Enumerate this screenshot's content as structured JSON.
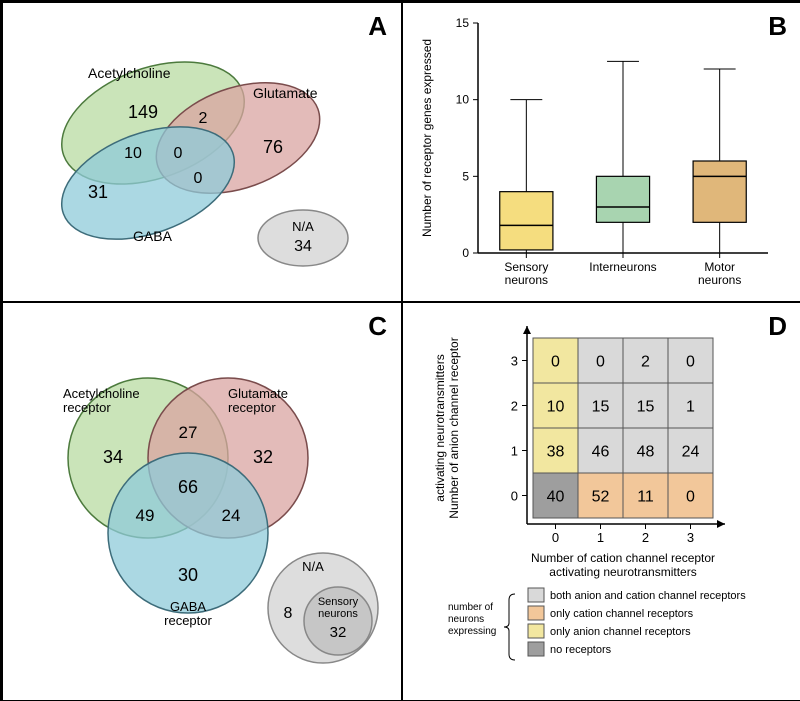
{
  "panelLabels": {
    "A": "A",
    "B": "B",
    "C": "C",
    "D": "D"
  },
  "vennA": {
    "sets": {
      "ach": {
        "label": "Acetylcholine",
        "color": "#b8dba2",
        "stroke": "#4c7a3d"
      },
      "glu": {
        "label": "Glutamate",
        "color": "#d9a4a1",
        "stroke": "#7a4c4c"
      },
      "gaba": {
        "label": "GABA",
        "color": "#8fcbd9",
        "stroke": "#3d6c7a"
      }
    },
    "regions": {
      "ach_only": "149",
      "glu_only": "76",
      "gaba_only": "31",
      "ach_glu": "2",
      "ach_gaba": "10",
      "glu_gaba": "0",
      "all": "0"
    },
    "na": {
      "label": "N/A",
      "value": "34",
      "color": "#d9d9d9",
      "stroke": "#888888"
    }
  },
  "boxplot": {
    "ylabel": "Number of receptor genes expressed",
    "ylim": [
      0,
      15
    ],
    "yticks": [
      0,
      5,
      10,
      15
    ],
    "categories": [
      "Sensory\nneurons",
      "Interneurons",
      "Motor\nneurons"
    ],
    "boxes": [
      {
        "color": "#f5dd7f",
        "stroke": "#000",
        "q1": 0.2,
        "median": 1.8,
        "q3": 4.0,
        "whisker_lo": 0,
        "whisker_hi": 10
      },
      {
        "color": "#a8d4b0",
        "stroke": "#000",
        "q1": 2.0,
        "median": 3.0,
        "q3": 5.0,
        "whisker_lo": 0,
        "whisker_hi": 12.5
      },
      {
        "color": "#e0b77a",
        "stroke": "#000",
        "q1": 2.0,
        "median": 5.0,
        "q3": 6.0,
        "whisker_lo": 0,
        "whisker_hi": 12
      }
    ]
  },
  "vennC": {
    "sets": {
      "ach": {
        "label": "Acetylcholine\nreceptor",
        "color": "#b8dba2",
        "stroke": "#4c7a3d"
      },
      "glu": {
        "label": "Glutamate\nreceptor",
        "color": "#d9a4a1",
        "stroke": "#7a4c4c"
      },
      "gaba": {
        "label": "GABA\nreceptor",
        "color": "#8fcbd9",
        "stroke": "#3d6c7a"
      }
    },
    "regions": {
      "ach_only": "34",
      "glu_only": "32",
      "gaba_only": "30",
      "ach_glu": "27",
      "ach_gaba": "49",
      "glu_gaba": "24",
      "all": "66"
    },
    "na_outer": {
      "label": "N/A",
      "value": "8",
      "color": "#d9d9d9",
      "stroke": "#888888"
    },
    "na_inner": {
      "label": "Sensory\nneurons",
      "value": "32",
      "color": "#c4c4c4",
      "stroke": "#888888"
    }
  },
  "heatmap": {
    "xlabel": "Number of cation channel receptor\nactivating neurotransmitters",
    "ylabel": "Number of anion channel receptor\nactivating neurotransmitters",
    "xcats": [
      "0",
      "1",
      "2",
      "3"
    ],
    "ycats": [
      "0",
      "1",
      "2",
      "3"
    ],
    "colors": {
      "both": "#d9d9d9",
      "cation": "#f2c79a",
      "anion": "#f2e7a0",
      "none": "#9e9e9e"
    },
    "cells": [
      [
        {
          "v": "0",
          "c": "anion"
        },
        {
          "v": "0",
          "c": "both"
        },
        {
          "v": "2",
          "c": "both"
        },
        {
          "v": "0",
          "c": "both"
        }
      ],
      [
        {
          "v": "10",
          "c": "anion"
        },
        {
          "v": "15",
          "c": "both"
        },
        {
          "v": "15",
          "c": "both"
        },
        {
          "v": "1",
          "c": "both"
        }
      ],
      [
        {
          "v": "38",
          "c": "anion"
        },
        {
          "v": "46",
          "c": "both"
        },
        {
          "v": "48",
          "c": "both"
        },
        {
          "v": "24",
          "c": "both"
        }
      ],
      [
        {
          "v": "40",
          "c": "none"
        },
        {
          "v": "52",
          "c": "cation"
        },
        {
          "v": "11",
          "c": "cation"
        },
        {
          "v": "0",
          "c": "cation"
        }
      ]
    ],
    "legend": {
      "title": "number of\nneurons\nexpressing",
      "items": [
        {
          "key": "both",
          "label": "both anion and cation channel receptors"
        },
        {
          "key": "cation",
          "label": "only cation channel receptors"
        },
        {
          "key": "anion",
          "label": "only anion channel receptors"
        },
        {
          "key": "none",
          "label": "no receptors"
        }
      ]
    }
  }
}
